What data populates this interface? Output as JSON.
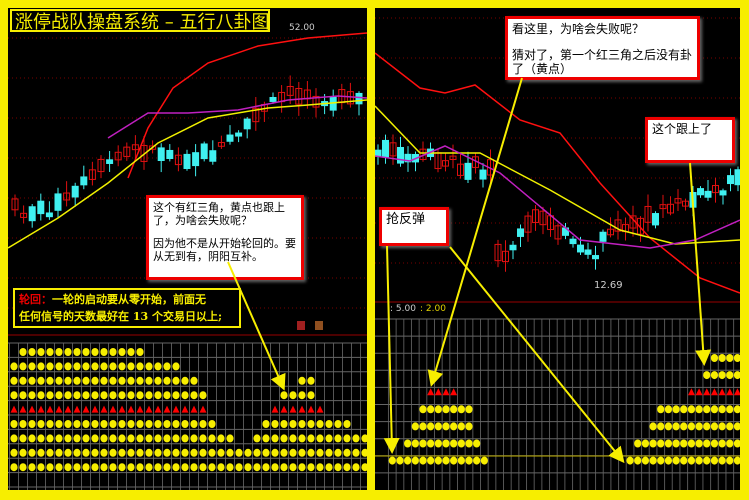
{
  "title": "涨停战队操盘系统 – 五行八卦图",
  "left_panel": {
    "high_price_label": "52.00",
    "note": {
      "line1": "这个有红三角，黄点也跟上了，为啥会失败呢？",
      "line2": "因为他不是从开始轮回的。要从无到有，阴阳互补。"
    },
    "rule_box": {
      "label": "轮回：",
      "text1": "一轮的启动要从零开始，前面无",
      "text2": "任何信号的天数最好在 13 个交易日以上;"
    },
    "grid_rows": [
      {
        "type": "dot",
        "ranges": [
          [
            1,
            14
          ]
        ]
      },
      {
        "type": "dot",
        "ranges": [
          [
            0,
            18
          ]
        ]
      },
      {
        "type": "dot",
        "ranges": [
          [
            0,
            20
          ],
          [
            32,
            33
          ]
        ]
      },
      {
        "type": "dot",
        "ranges": [
          [
            0,
            21
          ],
          [
            30,
            33
          ]
        ]
      },
      {
        "type": "triangle",
        "ranges": [
          [
            0,
            21
          ],
          [
            29,
            34
          ]
        ]
      },
      {
        "type": "dot",
        "ranges": [
          [
            0,
            22
          ],
          [
            28,
            37
          ]
        ]
      },
      {
        "type": "dot",
        "ranges": [
          [
            0,
            24
          ],
          [
            27,
            39
          ]
        ]
      },
      {
        "type": "dot",
        "ranges": [
          [
            0,
            39
          ]
        ]
      },
      {
        "type": "dot",
        "ranges": [
          [
            0,
            39
          ]
        ]
      }
    ]
  },
  "right_panel": {
    "low_price_label": "12.69",
    "indicator_params": ": 5.00",
    "indicator_params2": ": 2.00",
    "note_top": {
      "line1": "看这里，为啥会失败呢？",
      "line2": "猜对了，第一个红三角之后没有卦了（黄点）"
    },
    "note_right": "这个跟上了",
    "note_left": "抢反弹",
    "grid_rows": [
      {
        "type": "dot",
        "ranges": [
          [
            42,
            45
          ]
        ]
      },
      {
        "type": "dot",
        "ranges": [
          [
            41,
            45
          ]
        ]
      },
      {
        "type": "triangle",
        "ranges": [
          [
            5,
            8
          ],
          [
            39,
            45
          ]
        ]
      },
      {
        "type": "dot",
        "ranges": [
          [
            4,
            10
          ],
          [
            35,
            45
          ]
        ]
      },
      {
        "type": "dot",
        "ranges": [
          [
            3,
            10
          ],
          [
            34,
            45
          ]
        ]
      },
      {
        "type": "dot",
        "ranges": [
          [
            2,
            11
          ],
          [
            32,
            45
          ]
        ]
      },
      {
        "type": "dot",
        "ranges": [
          [
            0,
            12
          ],
          [
            31,
            45
          ]
        ]
      }
    ]
  },
  "colors": {
    "frame": "#f7ee00",
    "up": "#e01010",
    "down": "#40f0f0",
    "ma_long": "#ff1010",
    "ma_mid": "#c020c0",
    "ma_short": "#f0f000",
    "signal_dot": "#f7ee00",
    "signal_triangle": "#ff0000"
  }
}
